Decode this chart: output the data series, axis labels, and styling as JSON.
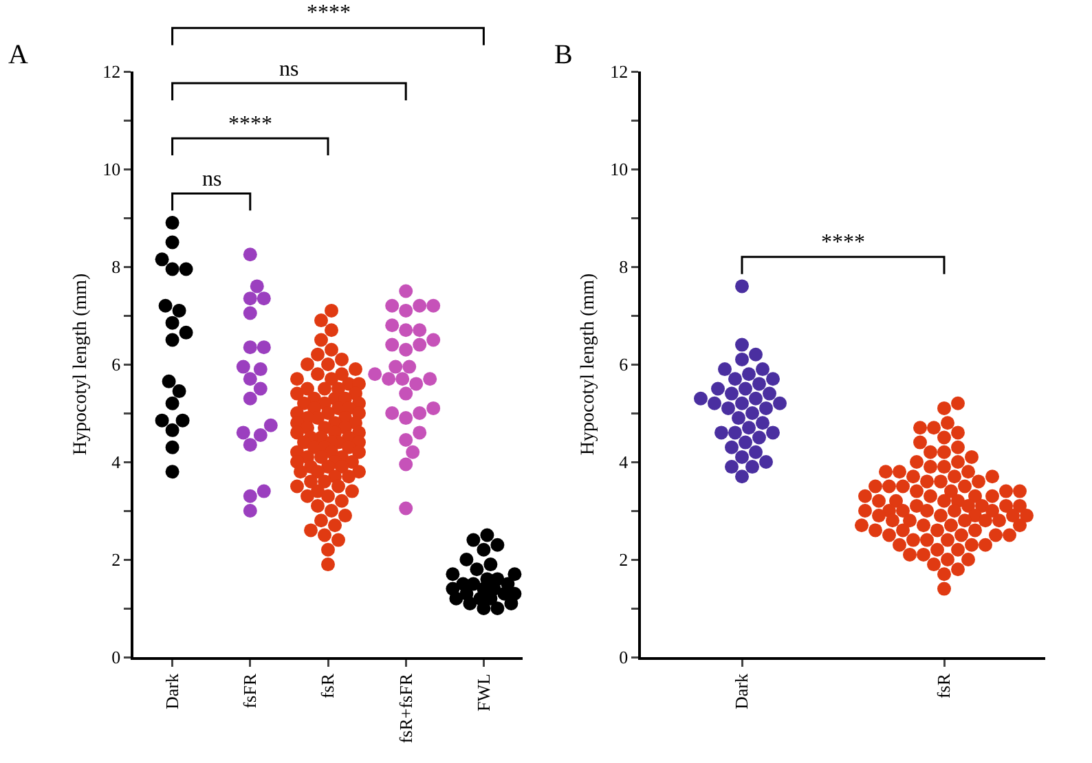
{
  "chart_data": [
    {
      "type": "scatter",
      "title": "A",
      "ylabel": "Hypocotyl length (mm)",
      "categories": [
        "Dark",
        "fsFR",
        "fsR",
        "fsR+fsFR",
        "FWL"
      ],
      "ylim": [
        0,
        12
      ],
      "yticks": [
        0,
        {
          "value": 1,
          "label": null
        },
        2,
        {
          "value": 3,
          "label": null
        },
        4,
        {
          "value": 5,
          "label": null
        },
        6,
        {
          "value": 7,
          "label": null
        },
        8,
        {
          "value": 9,
          "label": null
        },
        10,
        {
          "value": 11,
          "label": null
        },
        12
      ],
      "grid": false,
      "marker": "circle",
      "annotations": [
        "ns",
        "****",
        "ns",
        "****"
      ],
      "series": [
        {
          "color": "#000000",
          "x": [
            "Dark",
            "Dark",
            "Dark",
            "Dark",
            "Dark",
            "Dark",
            "Dark",
            "Dark",
            "Dark",
            "Dark",
            "Dark",
            "Dark",
            "Dark",
            "Dark",
            "Dark",
            "Dark",
            "Dark",
            "Dark"
          ],
          "values": [
            8.9,
            8.5,
            8.15,
            7.95,
            7.95,
            7.2,
            7.1,
            6.85,
            6.65,
            6.5,
            5.65,
            5.45,
            5.2,
            4.85,
            4.85,
            4.65,
            4.3,
            3.8
          ]
        },
        {
          "color": "#9b3fbf",
          "x": [
            "fsFR",
            "fsFR",
            "fsFR",
            "fsFR",
            "fsFR",
            "fsFR",
            "fsFR",
            "fsFR",
            "fsFR",
            "fsFR",
            "fsFR",
            "fsFR",
            "fsFR",
            "fsFR",
            "fsFR",
            "fsFR",
            "fsFR",
            "fsFR",
            "fsFR"
          ],
          "values": [
            8.25,
            7.6,
            7.35,
            7.35,
            7.05,
            6.35,
            6.35,
            5.95,
            5.9,
            5.7,
            5.5,
            5.3,
            4.75,
            4.6,
            4.55,
            4.35,
            3.4,
            3.3,
            3.0
          ]
        },
        {
          "color": "#e03a12",
          "x": [
            "fsR",
            "fsR",
            "fsR",
            "fsR",
            "fsR",
            "fsR",
            "fsR",
            "fsR",
            "fsR",
            "fsR",
            "fsR",
            "fsR",
            "fsR",
            "fsR",
            "fsR",
            "fsR",
            "fsR",
            "fsR",
            "fsR",
            "fsR",
            "fsR",
            "fsR",
            "fsR",
            "fsR",
            "fsR",
            "fsR",
            "fsR",
            "fsR",
            "fsR",
            "fsR",
            "fsR",
            "fsR",
            "fsR",
            "fsR",
            "fsR",
            "fsR",
            "fsR",
            "fsR",
            "fsR",
            "fsR",
            "fsR",
            "fsR",
            "fsR",
            "fsR",
            "fsR",
            "fsR",
            "fsR",
            "fsR",
            "fsR",
            "fsR",
            "fsR",
            "fsR",
            "fsR",
            "fsR",
            "fsR",
            "fsR",
            "fsR",
            "fsR",
            "fsR",
            "fsR",
            "fsR",
            "fsR",
            "fsR",
            "fsR",
            "fsR",
            "fsR",
            "fsR",
            "fsR",
            "fsR",
            "fsR",
            "fsR",
            "fsR",
            "fsR",
            "fsR",
            "fsR",
            "fsR",
            "fsR",
            "fsR",
            "fsR",
            "fsR",
            "fsR",
            "fsR",
            "fsR",
            "fsR",
            "fsR",
            "fsR",
            "fsR",
            "fsR",
            "fsR",
            "fsR",
            "fsR"
          ],
          "values": [
            7.1,
            6.9,
            6.7,
            6.5,
            6.3,
            6.2,
            6.1,
            6.0,
            6.0,
            5.9,
            5.8,
            5.8,
            5.7,
            5.7,
            5.6,
            5.6,
            5.5,
            5.5,
            5.5,
            5.4,
            5.4,
            5.3,
            5.3,
            5.3,
            5.2,
            5.2,
            5.2,
            5.1,
            5.1,
            5.1,
            5.0,
            5.0,
            5.0,
            4.9,
            4.9,
            4.9,
            4.8,
            4.8,
            4.8,
            4.7,
            4.7,
            4.7,
            4.6,
            4.6,
            4.6,
            4.5,
            4.5,
            4.5,
            4.4,
            4.4,
            4.4,
            4.4,
            4.3,
            4.3,
            4.3,
            4.2,
            4.2,
            4.2,
            4.1,
            4.1,
            4.1,
            4.0,
            4.0,
            4.0,
            3.9,
            3.9,
            3.9,
            3.8,
            3.8,
            3.8,
            3.7,
            3.7,
            3.6,
            3.6,
            3.5,
            3.5,
            3.4,
            3.4,
            3.3,
            3.3,
            3.2,
            3.1,
            3.0,
            2.9,
            2.8,
            2.7,
            2.6,
            2.5,
            2.4,
            2.2,
            1.9
          ]
        },
        {
          "color": "#c652b9",
          "x": [
            "fsR+fsFR",
            "fsR+fsFR",
            "fsR+fsFR",
            "fsR+fsFR",
            "fsR+fsFR",
            "fsR+fsFR",
            "fsR+fsFR",
            "fsR+fsFR",
            "fsR+fsFR",
            "fsR+fsFR",
            "fsR+fsFR",
            "fsR+fsFR",
            "fsR+fsFR",
            "fsR+fsFR",
            "fsR+fsFR",
            "fsR+fsFR",
            "fsR+fsFR",
            "fsR+fsFR",
            "fsR+fsFR",
            "fsR+fsFR",
            "fsR+fsFR",
            "fsR+fsFR",
            "fsR+fsFR",
            "fsR+fsFR",
            "fsR+fsFR",
            "fsR+fsFR",
            "fsR+fsFR",
            "fsR+fsFR",
            "fsR+fsFR"
          ],
          "values": [
            7.5,
            7.2,
            7.2,
            7.2,
            7.1,
            6.8,
            6.7,
            6.7,
            6.5,
            6.4,
            6.4,
            6.3,
            5.95,
            5.95,
            5.8,
            5.7,
            5.7,
            5.7,
            5.6,
            5.4,
            5.1,
            5.0,
            5.0,
            4.9,
            4.6,
            4.45,
            4.2,
            3.95,
            3.05
          ]
        },
        {
          "color": "#000000",
          "x": [
            "FWL",
            "FWL",
            "FWL",
            "FWL",
            "FWL",
            "FWL",
            "FWL",
            "FWL",
            "FWL",
            "FWL",
            "FWL",
            "FWL",
            "FWL",
            "FWL",
            "FWL",
            "FWL",
            "FWL",
            "FWL",
            "FWL",
            "FWL",
            "FWL",
            "FWL",
            "FWL",
            "FWL",
            "FWL",
            "FWL",
            "FWL"
          ],
          "values": [
            2.5,
            2.4,
            2.3,
            2.2,
            2.0,
            1.9,
            1.8,
            1.7,
            1.7,
            1.6,
            1.6,
            1.5,
            1.5,
            1.5,
            1.4,
            1.4,
            1.4,
            1.3,
            1.3,
            1.3,
            1.2,
            1.2,
            1.2,
            1.1,
            1.1,
            1.0,
            1.0
          ]
        }
      ]
    },
    {
      "type": "scatter",
      "title": "B",
      "ylabel": "Hypocotyl length (mm)",
      "categories": [
        "Dark",
        "fsR"
      ],
      "ylim": [
        0,
        12
      ],
      "yticks": [
        0,
        {
          "value": 1,
          "label": null
        },
        2,
        {
          "value": 3,
          "label": null
        },
        4,
        {
          "value": 5,
          "label": null
        },
        6,
        {
          "value": 7,
          "label": null
        },
        8,
        {
          "value": 9,
          "label": null
        },
        10,
        {
          "value": 11,
          "label": null
        },
        12
      ],
      "grid": false,
      "marker": "circle",
      "annotations": [
        "****"
      ],
      "series": [
        {
          "color": "#4a2fa0",
          "x": [
            "Dark",
            "Dark",
            "Dark",
            "Dark",
            "Dark",
            "Dark",
            "Dark",
            "Dark",
            "Dark",
            "Dark",
            "Dark",
            "Dark",
            "Dark",
            "Dark",
            "Dark",
            "Dark",
            "Dark",
            "Dark",
            "Dark",
            "Dark",
            "Dark",
            "Dark",
            "Dark",
            "Dark",
            "Dark",
            "Dark",
            "Dark",
            "Dark",
            "Dark",
            "Dark",
            "Dark",
            "Dark",
            "Dark",
            "Dark",
            "Dark",
            "Dark",
            "Dark"
          ],
          "values": [
            7.6,
            6.4,
            6.2,
            6.1,
            5.9,
            5.9,
            5.8,
            5.7,
            5.7,
            5.6,
            5.5,
            5.5,
            5.4,
            5.4,
            5.3,
            5.3,
            5.2,
            5.2,
            5.2,
            5.1,
            5.1,
            5.0,
            4.9,
            4.8,
            4.7,
            4.6,
            4.6,
            4.6,
            4.5,
            4.4,
            4.3,
            4.2,
            4.1,
            4.0,
            3.9,
            3.9,
            3.7
          ]
        },
        {
          "color": "#e03a12",
          "x": [
            "fsR",
            "fsR",
            "fsR",
            "fsR",
            "fsR",
            "fsR",
            "fsR",
            "fsR",
            "fsR",
            "fsR",
            "fsR",
            "fsR",
            "fsR",
            "fsR",
            "fsR",
            "fsR",
            "fsR",
            "fsR",
            "fsR",
            "fsR",
            "fsR",
            "fsR",
            "fsR",
            "fsR",
            "fsR",
            "fsR",
            "fsR",
            "fsR",
            "fsR",
            "fsR",
            "fsR",
            "fsR",
            "fsR",
            "fsR",
            "fsR",
            "fsR",
            "fsR",
            "fsR",
            "fsR",
            "fsR",
            "fsR",
            "fsR",
            "fsR",
            "fsR",
            "fsR",
            "fsR",
            "fsR",
            "fsR",
            "fsR",
            "fsR",
            "fsR",
            "fsR",
            "fsR",
            "fsR",
            "fsR",
            "fsR",
            "fsR",
            "fsR",
            "fsR",
            "fsR",
            "fsR",
            "fsR",
            "fsR",
            "fsR",
            "fsR",
            "fsR",
            "fsR",
            "fsR",
            "fsR",
            "fsR",
            "fsR",
            "fsR",
            "fsR",
            "fsR",
            "fsR",
            "fsR",
            "fsR",
            "fsR",
            "fsR",
            "fsR",
            "fsR",
            "fsR",
            "fsR",
            "fsR",
            "fsR",
            "fsR",
            "fsR",
            "fsR",
            "fsR",
            "fsR"
          ],
          "values": [
            5.2,
            5.1,
            4.8,
            4.7,
            4.7,
            4.6,
            4.5,
            4.4,
            4.3,
            4.2,
            4.2,
            4.1,
            4.0,
            4.0,
            3.9,
            3.9,
            3.8,
            3.8,
            3.8,
            3.7,
            3.7,
            3.7,
            3.6,
            3.6,
            3.6,
            3.5,
            3.5,
            3.5,
            3.5,
            3.4,
            3.4,
            3.4,
            3.4,
            3.3,
            3.3,
            3.3,
            3.3,
            3.2,
            3.2,
            3.2,
            3.2,
            3.1,
            3.1,
            3.1,
            3.1,
            3.1,
            3.0,
            3.0,
            3.0,
            3.0,
            3.0,
            3.0,
            2.9,
            2.9,
            2.9,
            2.9,
            2.9,
            2.8,
            2.8,
            2.8,
            2.8,
            2.8,
            2.7,
            2.7,
            2.7,
            2.7,
            2.6,
            2.6,
            2.6,
            2.6,
            2.5,
            2.5,
            2.5,
            2.5,
            2.4,
            2.4,
            2.4,
            2.3,
            2.3,
            2.3,
            2.2,
            2.2,
            2.1,
            2.1,
            2.0,
            2.0,
            1.9,
            1.8,
            1.7,
            1.4
          ]
        }
      ]
    }
  ]
}
